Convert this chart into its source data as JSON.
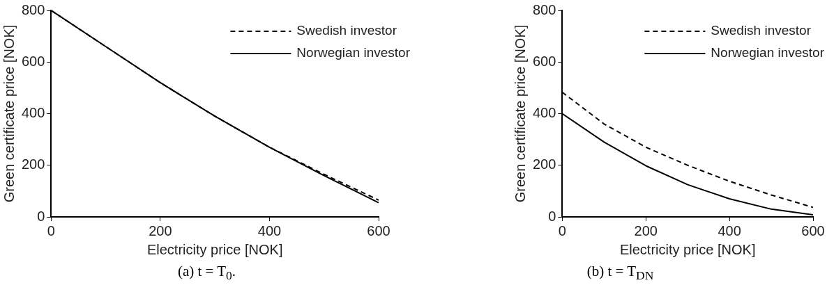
{
  "chart_data": [
    {
      "type": "line",
      "xlabel": "Electricity price [NOK]",
      "ylabel": "Green certificate price [NOK]",
      "x": [
        0,
        100,
        200,
        300,
        400,
        500,
        600
      ],
      "xlim": [
        0,
        600
      ],
      "xticks": [
        0,
        200,
        400,
        600
      ],
      "ylim": [
        0,
        800
      ],
      "yticks": [
        0,
        200,
        400,
        600,
        800
      ],
      "grid": false,
      "legend": "top right",
      "marker": "none",
      "annotations": [
        "(a) t = T$_{0}$."
      ],
      "series": [
        {
          "name": "Swedish investor",
          "color": "#000000",
          "line_style": "dashed",
          "values": [
            800,
            660,
            520,
            390,
            270,
            165,
            65
          ]
        },
        {
          "name": "Norwegian investor",
          "color": "#000000",
          "line_style": "solid",
          "values": [
            800,
            660,
            520,
            390,
            270,
            160,
            55
          ]
        }
      ]
    },
    {
      "type": "line",
      "xlabel": "Electricity price [NOK]",
      "ylabel": "Green certificate price [NOK]",
      "x": [
        0,
        100,
        200,
        300,
        400,
        500,
        600
      ],
      "xlim": [
        0,
        600
      ],
      "xticks": [
        0,
        200,
        400,
        600
      ],
      "ylim": [
        0,
        800
      ],
      "yticks": [
        0,
        200,
        400,
        600,
        800
      ],
      "grid": false,
      "legend": "top right",
      "marker": "none",
      "annotations": [
        "(b) t = T$_{DN}$"
      ],
      "series": [
        {
          "name": "Swedish investor",
          "color": "#000000",
          "line_style": "dashed",
          "values": [
            483,
            360,
            270,
            200,
            138,
            85,
            37
          ]
        },
        {
          "name": "Norwegian investor",
          "color": "#000000",
          "line_style": "solid",
          "values": [
            400,
            290,
            198,
            125,
            70,
            30,
            8
          ]
        }
      ]
    }
  ]
}
